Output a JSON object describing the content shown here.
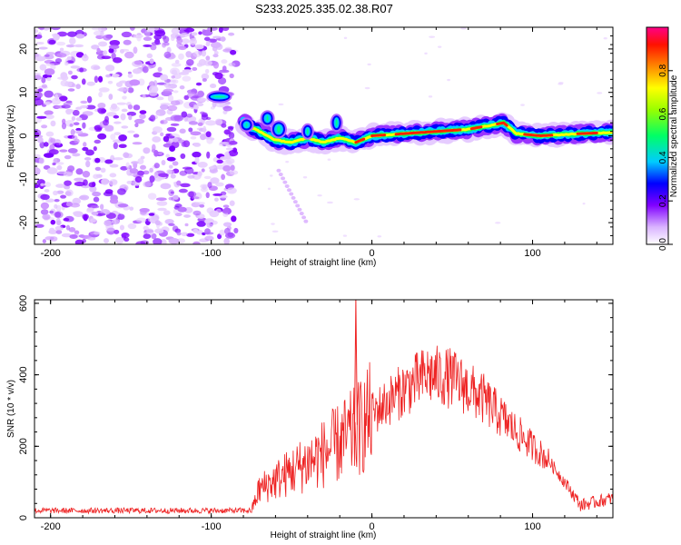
{
  "title": "S233.2025.335.02.38.R07",
  "chart_data": [
    {
      "type": "heatmap",
      "name": "spectrogram",
      "xlabel": "Height of straight line (km)",
      "ylabel": "Frequency (Hz)",
      "xlim": [
        -210,
        150
      ],
      "ylim": [
        -25,
        25
      ],
      "xticks": [
        -200,
        -100,
        0,
        100
      ],
      "yticks": [
        -20,
        -10,
        0,
        10,
        20
      ],
      "colorbar": {
        "label": "Normalized spectral amplitude",
        "range": [
          0,
          1
        ],
        "ticks": [
          "0.0",
          "0.2",
          "0.4",
          "0.6",
          "0.8"
        ]
      },
      "noise_region_x": [
        -210,
        -80
      ],
      "ridge": [
        {
          "x": -95,
          "f": 9.0
        },
        {
          "x": -78,
          "f": 2.5
        },
        {
          "x": -70,
          "f": 1.0
        },
        {
          "x": -60,
          "f": -1.0
        },
        {
          "x": -50,
          "f": -1.5
        },
        {
          "x": -40,
          "f": -0.5
        },
        {
          "x": -30,
          "f": -1.5
        },
        {
          "x": -20,
          "f": -0.5
        },
        {
          "x": -10,
          "f": -1.5
        },
        {
          "x": 0,
          "f": 0.0
        },
        {
          "x": 20,
          "f": 0.5
        },
        {
          "x": 40,
          "f": 1.0
        },
        {
          "x": 60,
          "f": 1.5
        },
        {
          "x": 75,
          "f": 2.5
        },
        {
          "x": 82,
          "f": 3.0
        },
        {
          "x": 90,
          "f": 0.5
        },
        {
          "x": 105,
          "f": 0.0
        },
        {
          "x": 130,
          "f": 0.5
        },
        {
          "x": 150,
          "f": 0.8
        }
      ]
    },
    {
      "type": "line",
      "name": "snr",
      "xlabel": "Height of straight line (km)",
      "ylabel": "SNR (10 * v/v)",
      "xlim": [
        -210,
        150
      ],
      "ylim": [
        0,
        610
      ],
      "xticks": [
        -200,
        -100,
        0,
        100
      ],
      "yticks": [
        0,
        200,
        400,
        600
      ],
      "color": "#ee2222",
      "envelope": [
        {
          "x": -210,
          "y": 20
        },
        {
          "x": -75,
          "y": 20
        },
        {
          "x": -70,
          "y": 80
        },
        {
          "x": -50,
          "y": 130
        },
        {
          "x": -30,
          "y": 180
        },
        {
          "x": -10,
          "y": 240
        },
        {
          "x": 0,
          "y": 290
        },
        {
          "x": 20,
          "y": 360
        },
        {
          "x": 35,
          "y": 400
        },
        {
          "x": 50,
          "y": 390
        },
        {
          "x": 70,
          "y": 330
        },
        {
          "x": 90,
          "y": 240
        },
        {
          "x": 110,
          "y": 160
        },
        {
          "x": 120,
          "y": 100
        },
        {
          "x": 130,
          "y": 35
        },
        {
          "x": 140,
          "y": 45
        },
        {
          "x": 150,
          "y": 55
        }
      ],
      "spike": {
        "x": -10,
        "y": 610
      }
    }
  ]
}
